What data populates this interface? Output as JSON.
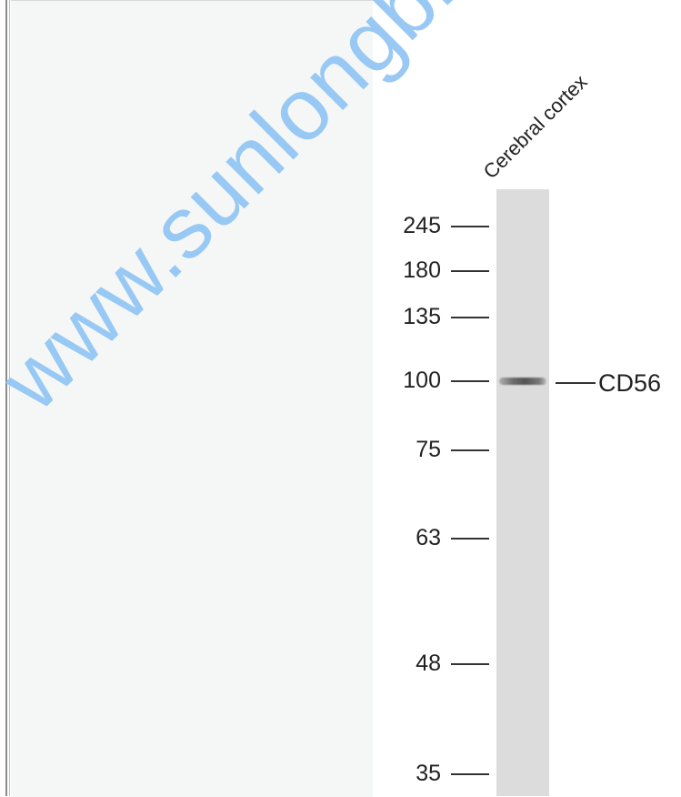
{
  "blot": {
    "sample_label": "Cerebral cortex",
    "target_label": "CD56",
    "markers": [
      {
        "id": "m245",
        "value": "245"
      },
      {
        "id": "m180",
        "value": "180"
      },
      {
        "id": "m135",
        "value": "135"
      },
      {
        "id": "m100",
        "value": "100"
      },
      {
        "id": "m75",
        "value": "75"
      },
      {
        "id": "m63",
        "value": "63"
      },
      {
        "id": "m48",
        "value": "48"
      },
      {
        "id": "m35",
        "value": "35"
      }
    ]
  },
  "watermark": {
    "text": "www.sunlongbio.com"
  },
  "colors": {
    "watermark": "#8fc3f4",
    "lane": "#dcdcdc",
    "band": "#555555",
    "left_panel": "#f5f7f7"
  }
}
